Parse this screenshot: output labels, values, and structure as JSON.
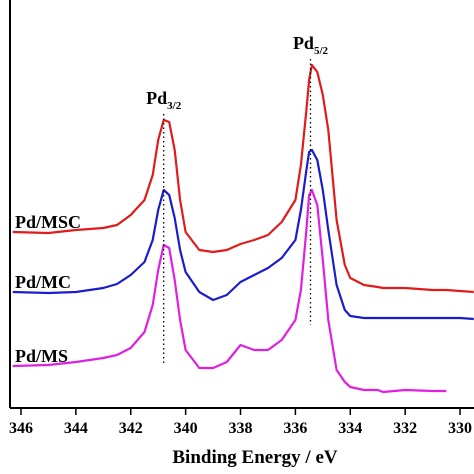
{
  "chart_data": {
    "type": "line",
    "x_label": "Binding Energy / eV",
    "x": [
      346.3,
      345,
      344,
      343,
      342.5,
      342,
      341.5,
      341.2,
      341,
      340.8,
      340.6,
      340.4,
      340.2,
      340,
      339.5,
      339,
      338.5,
      338,
      337.5,
      337,
      336.5,
      336,
      335.8,
      335.6,
      335.5,
      335.4,
      335.2,
      335,
      334.8,
      334.5,
      334.2,
      334,
      333.5,
      333,
      332.8,
      332,
      331,
      330.5,
      330,
      329.5
    ],
    "series": [
      {
        "name": "Pd/MSC",
        "color": "#e01b1b",
        "values": [
          176,
          175,
          178,
          180,
          183,
          193,
          208,
          233,
          268,
          288,
          286,
          258,
          208,
          176,
          158,
          156,
          158,
          164,
          168,
          173,
          186,
          208,
          243,
          298,
          328,
          343,
          336,
          313,
          278,
          188,
          143,
          130,
          123,
          121,
          120,
          120,
          118,
          118,
          117,
          116
        ]
      },
      {
        "name": "Pd/MC",
        "color": "#1c1ccc",
        "values": [
          116,
          115,
          116,
          120,
          124,
          133,
          146,
          168,
          198,
          218,
          213,
          190,
          158,
          136,
          116,
          108,
          113,
          126,
          133,
          140,
          150,
          168,
          198,
          238,
          256,
          258,
          248,
          218,
          178,
          123,
          98,
          92,
          90,
          90,
          90,
          90,
          90,
          90,
          90,
          89
        ]
      },
      {
        "name": "Pd/MS",
        "color": "#e020e0",
        "values": [
          42,
          43,
          46,
          50,
          53,
          60,
          76,
          103,
          138,
          163,
          160,
          128,
          88,
          58,
          40,
          40,
          46,
          63,
          58,
          58,
          68,
          88,
          118,
          178,
          213,
          218,
          203,
          148,
          88,
          38,
          26,
          21,
          18,
          18,
          16,
          18,
          17,
          17,
          null,
          null
        ]
      }
    ],
    "annotations": [
      {
        "x": 340.8,
        "text": "Pd",
        "sub": "3/2"
      },
      {
        "x": 335.45,
        "text": "Pd",
        "sub": "5/2"
      }
    ],
    "xlim": [
      346.4,
      329.2
    ],
    "xticks": [
      346,
      344,
      342,
      340,
      338,
      336,
      334,
      332,
      330
    ],
    "ylim": [
      0,
      408
    ]
  }
}
